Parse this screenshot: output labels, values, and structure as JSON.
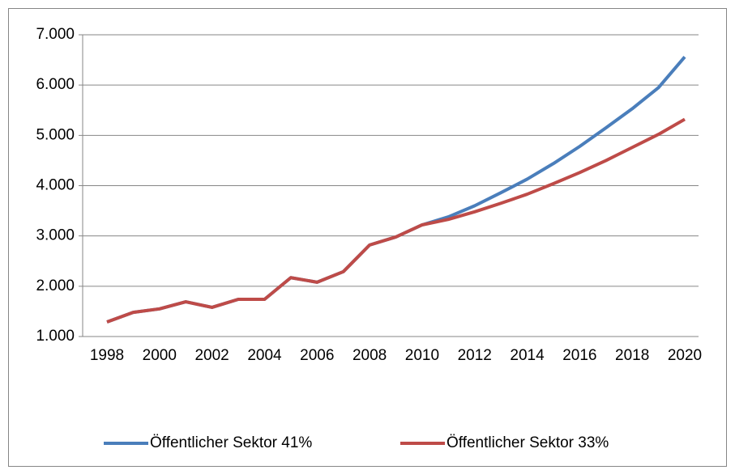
{
  "chart_data": {
    "type": "line",
    "categories": [
      "1998",
      null,
      "2000",
      null,
      "2002",
      null,
      "2004",
      null,
      "2006",
      null,
      "2008",
      null,
      "2010",
      null,
      "2012",
      null,
      "2014",
      null,
      "2016",
      null,
      "2018",
      null,
      "2020"
    ],
    "series": [
      {
        "name": "Öffentlicher Sektor 41%",
        "color": "#4a7ebb",
        "values": [
          1290,
          1480,
          1550,
          1690,
          1580,
          1740,
          1740,
          2170,
          2080,
          2290,
          2820,
          2980,
          3220,
          3380,
          3600,
          3860,
          4130,
          4440,
          4780,
          5150,
          5530,
          5950,
          6560
        ]
      },
      {
        "name": "Öffentlicher Sektor 33%",
        "color": "#be4b48",
        "values": [
          1290,
          1480,
          1550,
          1690,
          1580,
          1740,
          1740,
          2170,
          2080,
          2290,
          2820,
          2980,
          3220,
          3330,
          3480,
          3650,
          3830,
          4040,
          4260,
          4500,
          4760,
          5020,
          5320
        ]
      }
    ],
    "ylim": [
      1000,
      7000
    ],
    "yticks": [
      {
        "value": 1000,
        "label": "1.000"
      },
      {
        "value": 2000,
        "label": "2.000"
      },
      {
        "value": 3000,
        "label": "3.000"
      },
      {
        "value": 4000,
        "label": "4.000"
      },
      {
        "value": 5000,
        "label": "5.000"
      },
      {
        "value": 6000,
        "label": "6.000"
      },
      {
        "value": 7000,
        "label": "7.000"
      }
    ],
    "grid": true,
    "legend": "bottom"
  }
}
